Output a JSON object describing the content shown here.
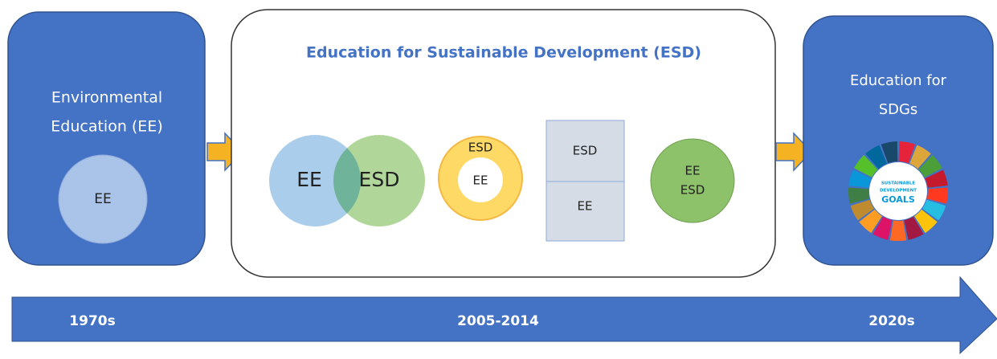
{
  "left_box": {
    "title_lines": [
      "Environmental",
      "Education (EE)"
    ],
    "circle_label": "EE"
  },
  "middle_box": {
    "title": "Education for Sustainable Development (ESD)",
    "venn": {
      "left": "EE",
      "right": "ESD"
    },
    "ring": {
      "outer": "ESD",
      "inner": "EE"
    },
    "stack": {
      "top": "ESD",
      "bottom": "EE"
    },
    "merged": {
      "top": "EE",
      "bottom": "ESD"
    }
  },
  "right_box": {
    "title_lines": [
      "Education for",
      "SDGs"
    ],
    "logo_lines": [
      "SUSTAINABLE",
      "DEVELOPMENT",
      "GOALS"
    ]
  },
  "timeline": {
    "labels": [
      "1970s",
      "2005-2014",
      "2020s"
    ]
  }
}
